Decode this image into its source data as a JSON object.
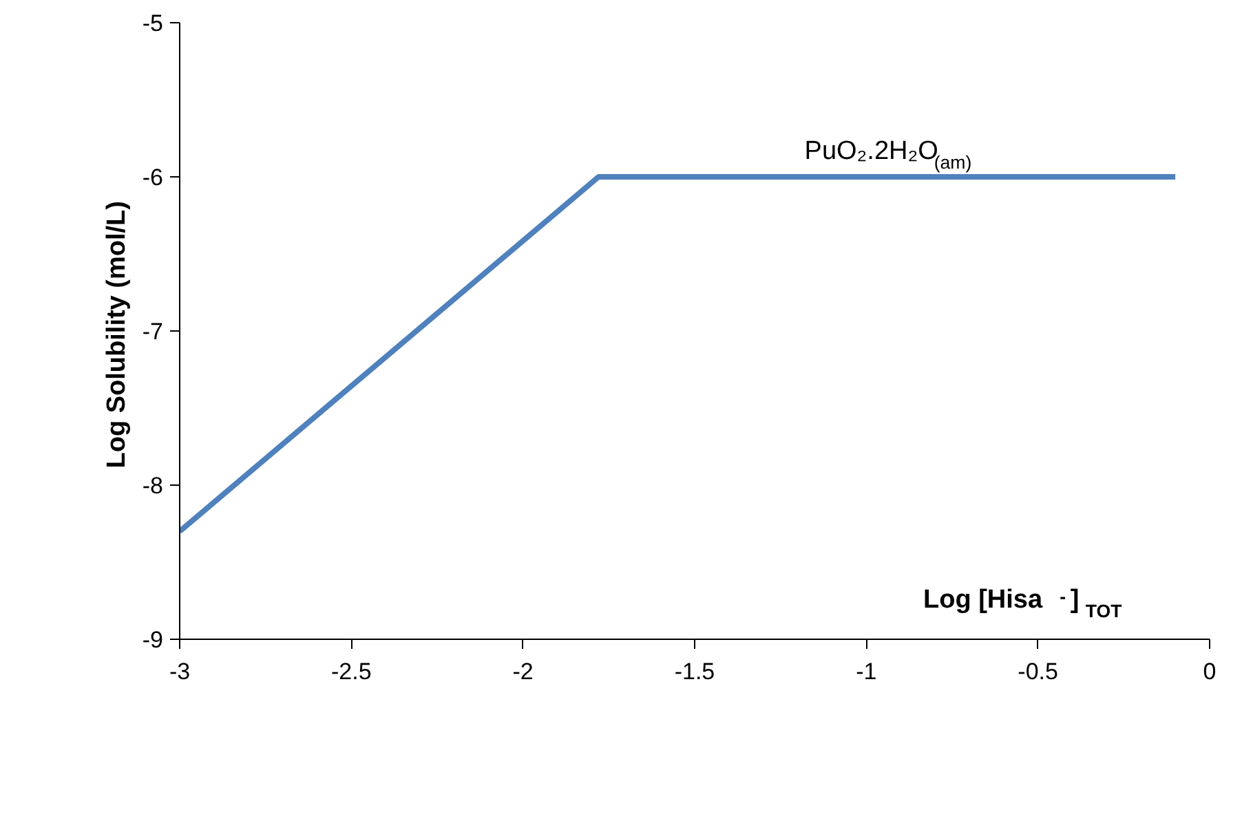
{
  "chart_data": {
    "type": "line",
    "xlabel": "Log [Hisa$^{-}$]$_{TOT}$",
    "ylabel": "Log Solubility  (mol/L)",
    "series": [
      {
        "color": "#4f81bd",
        "x": [
          -3,
          -1.78,
          -0.1
        ],
        "values": [
          -8.3,
          -6,
          -6
        ]
      }
    ],
    "xlim": [
      -3,
      0
    ],
    "xticks": [
      -3,
      -2.5,
      -2,
      -1.5,
      -1,
      -0.5,
      0
    ],
    "ylim": [
      -9,
      -5
    ],
    "yticks": [
      -9,
      -8,
      -7,
      -6,
      -5
    ],
    "grid": false,
    "marker": "none",
    "line_style": "solid",
    "annotations": [
      {
        "text": "PuO₂.2H₂O$_{(am)}$",
        "x": -1.18,
        "y": -6
      }
    ]
  }
}
